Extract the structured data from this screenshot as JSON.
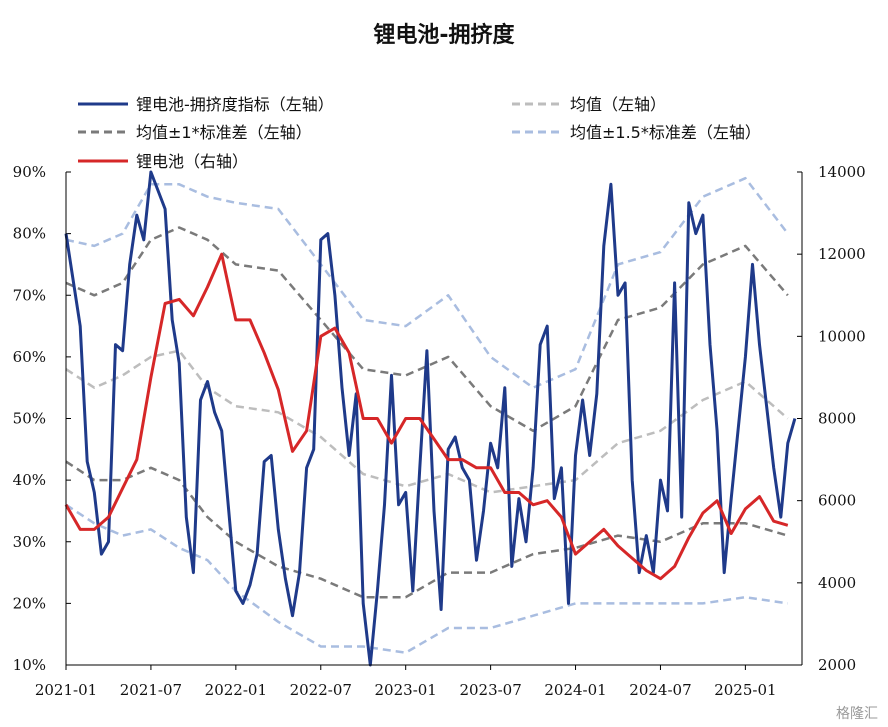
{
  "chart_data": {
    "type": "line",
    "title": "锂电池-拥挤度",
    "x_ticks": [
      "2021-01",
      "2021-07",
      "2022-01",
      "2022-07",
      "2023-01",
      "2023-07",
      "2024-01",
      "2024-07",
      "2025-01"
    ],
    "y_left": {
      "ticks": [
        "90%",
        "80%",
        "70%",
        "60%",
        "50%",
        "40%",
        "30%",
        "20%",
        "10%"
      ],
      "lim": [
        0.1,
        0.9
      ]
    },
    "y_right": {
      "ticks": [
        "14000",
        "12000",
        "10000",
        "8000",
        "6000",
        "4000",
        "2000"
      ],
      "lim": [
        2000,
        14000
      ]
    },
    "legend_placement": "top",
    "series": [
      {
        "name": "锂电池-拥挤度指标（左轴）",
        "axis": "left",
        "color": "#1f3a8a",
        "style": "solid",
        "points": [
          [
            "2021-01",
            0.8
          ],
          [
            "2021-02",
            0.65
          ],
          [
            "2021-02",
            0.43
          ],
          [
            "2021-03",
            0.38
          ],
          [
            "2021-03",
            0.28
          ],
          [
            "2021-04",
            0.3
          ],
          [
            "2021-04",
            0.62
          ],
          [
            "2021-05",
            0.61
          ],
          [
            "2021-05",
            0.75
          ],
          [
            "2021-06",
            0.83
          ],
          [
            "2021-06",
            0.79
          ],
          [
            "2021-07",
            0.9
          ],
          [
            "2021-08",
            0.84
          ],
          [
            "2021-08",
            0.66
          ],
          [
            "2021-09",
            0.59
          ],
          [
            "2021-09",
            0.34
          ],
          [
            "2021-10",
            0.25
          ],
          [
            "2021-10",
            0.53
          ],
          [
            "2021-11",
            0.56
          ],
          [
            "2021-11",
            0.51
          ],
          [
            "2021-12",
            0.48
          ],
          [
            "2022-01",
            0.22
          ],
          [
            "2022-01",
            0.2
          ],
          [
            "2022-02",
            0.23
          ],
          [
            "2022-02",
            0.28
          ],
          [
            "2022-03",
            0.43
          ],
          [
            "2022-03",
            0.44
          ],
          [
            "2022-04",
            0.32
          ],
          [
            "2022-04",
            0.24
          ],
          [
            "2022-05",
            0.18
          ],
          [
            "2022-05",
            0.25
          ],
          [
            "2022-06",
            0.42
          ],
          [
            "2022-06",
            0.45
          ],
          [
            "2022-07",
            0.79
          ],
          [
            "2022-07",
            0.8
          ],
          [
            "2022-08",
            0.7
          ],
          [
            "2022-08",
            0.55
          ],
          [
            "2022-09",
            0.44
          ],
          [
            "2022-09",
            0.54
          ],
          [
            "2022-10",
            0.2
          ],
          [
            "2022-10",
            0.1
          ],
          [
            "2022-11",
            0.22
          ],
          [
            "2022-11",
            0.36
          ],
          [
            "2022-12",
            0.57
          ],
          [
            "2022-12",
            0.36
          ],
          [
            "2023-01",
            0.38
          ],
          [
            "2023-01",
            0.22
          ],
          [
            "2023-02",
            0.42
          ],
          [
            "2023-02",
            0.61
          ],
          [
            "2023-03",
            0.35
          ],
          [
            "2023-03",
            0.19
          ],
          [
            "2023-04",
            0.45
          ],
          [
            "2023-04",
            0.47
          ],
          [
            "2023-05",
            0.42
          ],
          [
            "2023-05",
            0.4
          ],
          [
            "2023-06",
            0.27
          ],
          [
            "2023-06",
            0.35
          ],
          [
            "2023-07",
            0.46
          ],
          [
            "2023-07",
            0.42
          ],
          [
            "2023-08",
            0.55
          ],
          [
            "2023-08",
            0.26
          ],
          [
            "2023-09",
            0.37
          ],
          [
            "2023-09",
            0.3
          ],
          [
            "2023-10",
            0.42
          ],
          [
            "2023-10",
            0.62
          ],
          [
            "2023-11",
            0.65
          ],
          [
            "2023-11",
            0.37
          ],
          [
            "2023-12",
            0.42
          ],
          [
            "2023-12",
            0.2
          ],
          [
            "2024-01",
            0.44
          ],
          [
            "2024-01",
            0.53
          ],
          [
            "2024-02",
            0.44
          ],
          [
            "2024-02",
            0.54
          ],
          [
            "2024-03",
            0.78
          ],
          [
            "2024-03",
            0.88
          ],
          [
            "2024-04",
            0.7
          ],
          [
            "2024-04",
            0.72
          ],
          [
            "2024-05",
            0.4
          ],
          [
            "2024-05",
            0.25
          ],
          [
            "2024-06",
            0.31
          ],
          [
            "2024-06",
            0.25
          ],
          [
            "2024-07",
            0.4
          ],
          [
            "2024-07",
            0.35
          ],
          [
            "2024-08",
            0.72
          ],
          [
            "2024-08",
            0.34
          ],
          [
            "2024-09",
            0.85
          ],
          [
            "2024-09",
            0.8
          ],
          [
            "2024-10",
            0.83
          ],
          [
            "2024-10",
            0.62
          ],
          [
            "2024-11",
            0.48
          ],
          [
            "2024-11",
            0.25
          ],
          [
            "2024-12",
            0.37
          ],
          [
            "2025-01",
            0.6
          ],
          [
            "2025-01",
            0.75
          ],
          [
            "2025-02",
            0.62
          ],
          [
            "2025-03",
            0.42
          ],
          [
            "2025-03",
            0.34
          ],
          [
            "2025-04",
            0.46
          ],
          [
            "2025-04",
            0.5
          ]
        ]
      },
      {
        "name": "均值（左轴）",
        "axis": "left",
        "color": "#bdbdbd",
        "style": "dashed",
        "points": [
          [
            "2021-01",
            0.58
          ],
          [
            "2021-03",
            0.55
          ],
          [
            "2021-05",
            0.57
          ],
          [
            "2021-07",
            0.6
          ],
          [
            "2021-09",
            0.61
          ],
          [
            "2021-11",
            0.55
          ],
          [
            "2022-01",
            0.52
          ],
          [
            "2022-04",
            0.51
          ],
          [
            "2022-07",
            0.47
          ],
          [
            "2022-10",
            0.41
          ],
          [
            "2023-01",
            0.39
          ],
          [
            "2023-04",
            0.41
          ],
          [
            "2023-07",
            0.38
          ],
          [
            "2023-10",
            0.39
          ],
          [
            "2024-01",
            0.4
          ],
          [
            "2024-04",
            0.46
          ],
          [
            "2024-07",
            0.48
          ],
          [
            "2024-10",
            0.53
          ],
          [
            "2025-01",
            0.56
          ],
          [
            "2025-04",
            0.5
          ]
        ]
      },
      {
        "name": "均值±1*标准差（左轴）",
        "axis": "left",
        "color": "#7a7a7a",
        "style": "dashed",
        "points": [
          [
            "2021-01",
            0.72
          ],
          [
            "2021-03",
            0.7
          ],
          [
            "2021-05",
            0.72
          ],
          [
            "2021-07",
            0.79
          ],
          [
            "2021-09",
            0.81
          ],
          [
            "2021-11",
            0.79
          ],
          [
            "2022-01",
            0.75
          ],
          [
            "2022-04",
            0.74
          ],
          [
            "2022-07",
            0.66
          ],
          [
            "2022-10",
            0.58
          ],
          [
            "2023-01",
            0.57
          ],
          [
            "2023-04",
            0.6
          ],
          [
            "2023-07",
            0.52
          ],
          [
            "2023-10",
            0.48
          ],
          [
            "2024-01",
            0.52
          ],
          [
            "2024-04",
            0.66
          ],
          [
            "2024-07",
            0.68
          ],
          [
            "2024-10",
            0.75
          ],
          [
            "2025-01",
            0.78
          ],
          [
            "2025-04",
            0.7
          ]
        ]
      },
      {
        "name": "均值±1*标准差（左轴）",
        "axis": "left",
        "color": "#7a7a7a",
        "style": "dashed",
        "legend": false,
        "points": [
          [
            "2021-01",
            0.43
          ],
          [
            "2021-03",
            0.4
          ],
          [
            "2021-05",
            0.4
          ],
          [
            "2021-07",
            0.42
          ],
          [
            "2021-09",
            0.4
          ],
          [
            "2021-11",
            0.34
          ],
          [
            "2022-01",
            0.3
          ],
          [
            "2022-04",
            0.26
          ],
          [
            "2022-07",
            0.24
          ],
          [
            "2022-10",
            0.21
          ],
          [
            "2023-01",
            0.21
          ],
          [
            "2023-04",
            0.25
          ],
          [
            "2023-07",
            0.25
          ],
          [
            "2023-10",
            0.28
          ],
          [
            "2024-01",
            0.29
          ],
          [
            "2024-04",
            0.31
          ],
          [
            "2024-07",
            0.3
          ],
          [
            "2024-10",
            0.33
          ],
          [
            "2025-01",
            0.33
          ],
          [
            "2025-04",
            0.31
          ]
        ]
      },
      {
        "name": "均值±1.5*标准差（左轴）",
        "axis": "left",
        "color": "#a9bde0",
        "style": "dashed",
        "points": [
          [
            "2021-01",
            0.79
          ],
          [
            "2021-03",
            0.78
          ],
          [
            "2021-05",
            0.8
          ],
          [
            "2021-07",
            0.88
          ],
          [
            "2021-09",
            0.88
          ],
          [
            "2021-11",
            0.86
          ],
          [
            "2022-01",
            0.85
          ],
          [
            "2022-04",
            0.84
          ],
          [
            "2022-07",
            0.75
          ],
          [
            "2022-10",
            0.66
          ],
          [
            "2023-01",
            0.65
          ],
          [
            "2023-04",
            0.7
          ],
          [
            "2023-07",
            0.6
          ],
          [
            "2023-10",
            0.55
          ],
          [
            "2024-01",
            0.58
          ],
          [
            "2024-04",
            0.75
          ],
          [
            "2024-07",
            0.77
          ],
          [
            "2024-10",
            0.86
          ],
          [
            "2025-01",
            0.89
          ],
          [
            "2025-04",
            0.8
          ]
        ]
      },
      {
        "name": "均值±1.5*标准差（左轴）",
        "axis": "left",
        "color": "#a9bde0",
        "style": "dashed",
        "legend": false,
        "points": [
          [
            "2021-01",
            0.36
          ],
          [
            "2021-03",
            0.33
          ],
          [
            "2021-05",
            0.31
          ],
          [
            "2021-07",
            0.32
          ],
          [
            "2021-09",
            0.29
          ],
          [
            "2021-11",
            0.27
          ],
          [
            "2022-01",
            0.22
          ],
          [
            "2022-04",
            0.17
          ],
          [
            "2022-07",
            0.13
          ],
          [
            "2022-10",
            0.13
          ],
          [
            "2023-01",
            0.12
          ],
          [
            "2023-04",
            0.16
          ],
          [
            "2023-07",
            0.16
          ],
          [
            "2023-10",
            0.18
          ],
          [
            "2024-01",
            0.2
          ],
          [
            "2024-04",
            0.2
          ],
          [
            "2024-07",
            0.2
          ],
          [
            "2024-10",
            0.2
          ],
          [
            "2025-01",
            0.21
          ],
          [
            "2025-04",
            0.2
          ]
        ]
      },
      {
        "name": "锂电池（右轴）",
        "axis": "right",
        "color": "#d62728",
        "style": "solid",
        "points": [
          [
            "2021-01",
            5900
          ],
          [
            "2021-02",
            5300
          ],
          [
            "2021-03",
            5300
          ],
          [
            "2021-04",
            5600
          ],
          [
            "2021-05",
            6300
          ],
          [
            "2021-06",
            7000
          ],
          [
            "2021-07",
            9000
          ],
          [
            "2021-08",
            10800
          ],
          [
            "2021-09",
            10900
          ],
          [
            "2021-10",
            10500
          ],
          [
            "2021-11",
            11200
          ],
          [
            "2021-12",
            12000
          ],
          [
            "2022-01",
            10400
          ],
          [
            "2022-02",
            10400
          ],
          [
            "2022-03",
            9600
          ],
          [
            "2022-04",
            8700
          ],
          [
            "2022-05",
            7200
          ],
          [
            "2022-06",
            7700
          ],
          [
            "2022-07",
            10000
          ],
          [
            "2022-08",
            10200
          ],
          [
            "2022-09",
            9600
          ],
          [
            "2022-10",
            8000
          ],
          [
            "2022-11",
            8000
          ],
          [
            "2022-12",
            7400
          ],
          [
            "2023-01",
            8000
          ],
          [
            "2023-02",
            8000
          ],
          [
            "2023-03",
            7500
          ],
          [
            "2023-04",
            7000
          ],
          [
            "2023-05",
            7000
          ],
          [
            "2023-06",
            6800
          ],
          [
            "2023-07",
            6800
          ],
          [
            "2023-08",
            6200
          ],
          [
            "2023-09",
            6200
          ],
          [
            "2023-10",
            5900
          ],
          [
            "2023-11",
            6000
          ],
          [
            "2023-12",
            5600
          ],
          [
            "2024-01",
            4700
          ],
          [
            "2024-02",
            5000
          ],
          [
            "2024-03",
            5300
          ],
          [
            "2024-04",
            4900
          ],
          [
            "2024-05",
            4600
          ],
          [
            "2024-06",
            4300
          ],
          [
            "2024-07",
            4100
          ],
          [
            "2024-08",
            4400
          ],
          [
            "2024-09",
            5100
          ],
          [
            "2024-10",
            5700
          ],
          [
            "2024-11",
            6000
          ],
          [
            "2024-12",
            5200
          ],
          [
            "2025-01",
            5800
          ],
          [
            "2025-02",
            6100
          ],
          [
            "2025-03",
            5500
          ],
          [
            "2025-04",
            5400
          ]
        ]
      }
    ]
  },
  "watermark": "格隆汇"
}
